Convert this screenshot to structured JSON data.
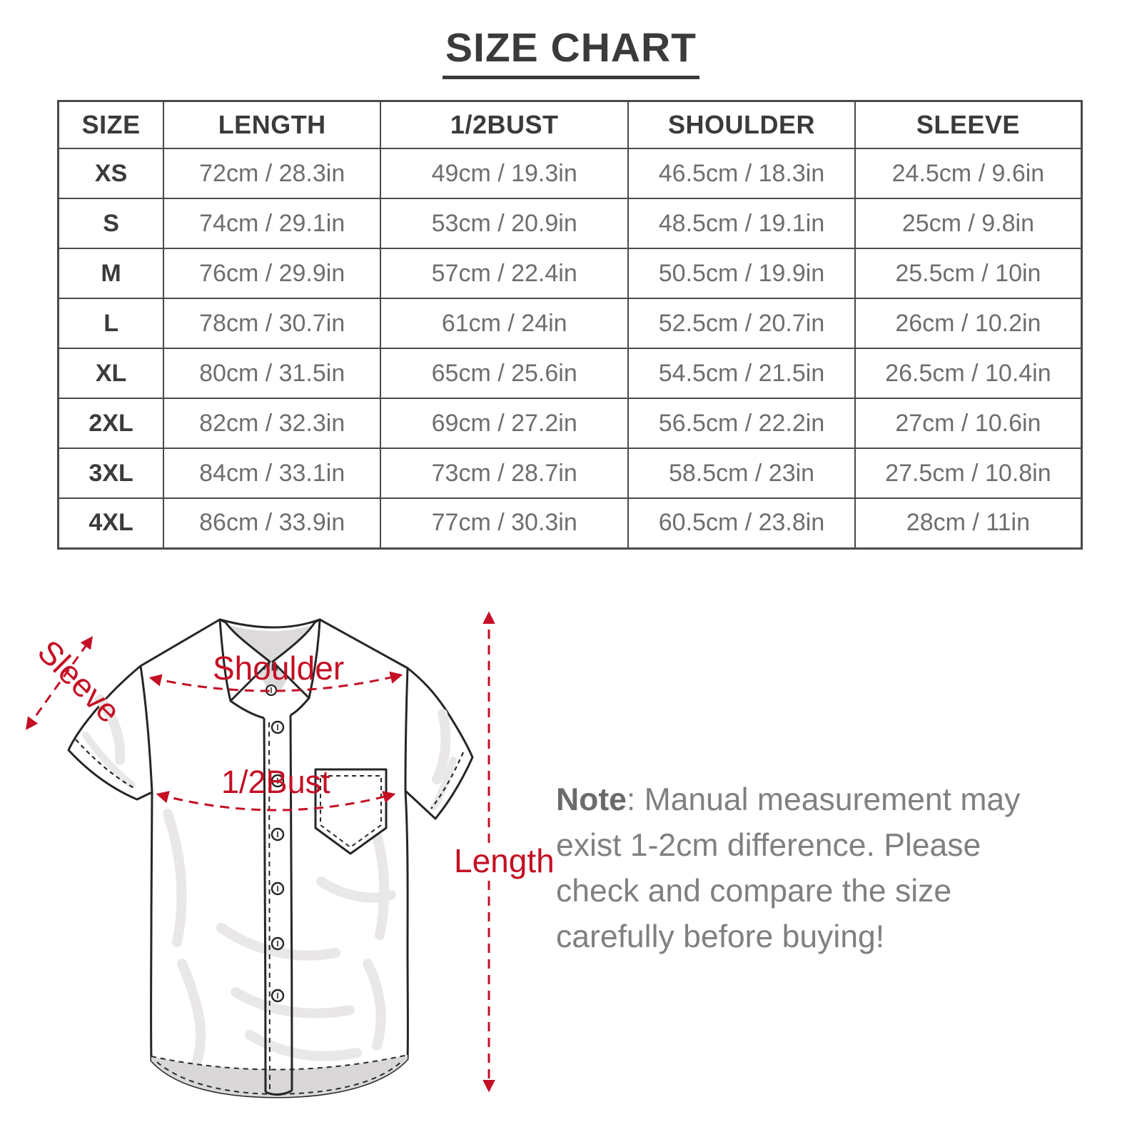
{
  "page": {
    "background": "#ffffff"
  },
  "title": "SIZE CHART",
  "table": {
    "headers": [
      "SIZE",
      "LENGTH",
      "1/2BUST",
      "SHOULDER",
      "SLEEVE"
    ],
    "rows": [
      {
        "size": "XS",
        "length": "72cm / 28.3in",
        "bust": "49cm / 19.3in",
        "shoulder": "46.5cm / 18.3in",
        "sleeve": "24.5cm / 9.6in"
      },
      {
        "size": "S",
        "length": "74cm / 29.1in",
        "bust": "53cm / 20.9in",
        "shoulder": "48.5cm / 19.1in",
        "sleeve": "25cm / 9.8in"
      },
      {
        "size": "M",
        "length": "76cm / 29.9in",
        "bust": "57cm / 22.4in",
        "shoulder": "50.5cm / 19.9in",
        "sleeve": "25.5cm / 10in"
      },
      {
        "size": "L",
        "length": "78cm / 30.7in",
        "bust": "61cm / 24in",
        "shoulder": "52.5cm / 20.7in",
        "sleeve": "26cm / 10.2in"
      },
      {
        "size": "XL",
        "length": "80cm / 31.5in",
        "bust": "65cm / 25.6in",
        "shoulder": "54.5cm / 21.5in",
        "sleeve": "26.5cm / 10.4in"
      },
      {
        "size": "2XL",
        "length": "82cm / 32.3in",
        "bust": "69cm / 27.2in",
        "shoulder": "56.5cm / 22.2in",
        "sleeve": "27cm / 10.6in"
      },
      {
        "size": "3XL",
        "length": "84cm / 33.1in",
        "bust": "73cm / 28.7in",
        "shoulder": "58.5cm / 23in",
        "sleeve": "27.5cm / 10.8in"
      },
      {
        "size": "4XL",
        "length": "86cm / 33.9in",
        "bust": "77cm / 30.3in",
        "shoulder": "60.5cm / 23.8in",
        "sleeve": "28cm / 11in"
      }
    ]
  },
  "diagram": {
    "labels": {
      "sleeve": "Sleeve",
      "shoulder": "Shoulder",
      "bust": "1/2Bust",
      "length": "Length"
    },
    "accent_color": "#c40f24",
    "outline_color": "#262626"
  },
  "note": {
    "label": "Note",
    "body": ": Manual measurement may exist 1-2cm difference. Please check and compare the size carefully before buying!"
  }
}
